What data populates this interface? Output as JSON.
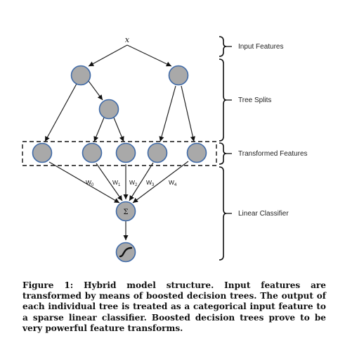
{
  "diagram": {
    "input_symbol": "x",
    "sections": [
      {
        "label": "Input Features"
      },
      {
        "label": "Tree Splits"
      },
      {
        "label": "Transformed Features"
      },
      {
        "label": "Linear Classifier"
      }
    ],
    "weights": [
      {
        "symbol": "W",
        "sub": "0"
      },
      {
        "symbol": "W",
        "sub": "1"
      },
      {
        "symbol": "W",
        "sub": "2"
      },
      {
        "symbol": "W",
        "sub": "3"
      },
      {
        "symbol": "W",
        "sub": "4"
      }
    ],
    "sum_symbol": "Σ",
    "output_icon": "sigmoid-curve-icon",
    "colors": {
      "node_fill": "#a9a9a9",
      "node_stroke": "#3f6aa8"
    }
  },
  "caption": {
    "text": "Figure 1: Hybrid model structure. Input features are transformed by means of boosted decision trees. The output of each individual tree is treated as a categorical input feature to a sparse linear classifier. Boosted decision trees prove to be very powerful feature transforms."
  }
}
